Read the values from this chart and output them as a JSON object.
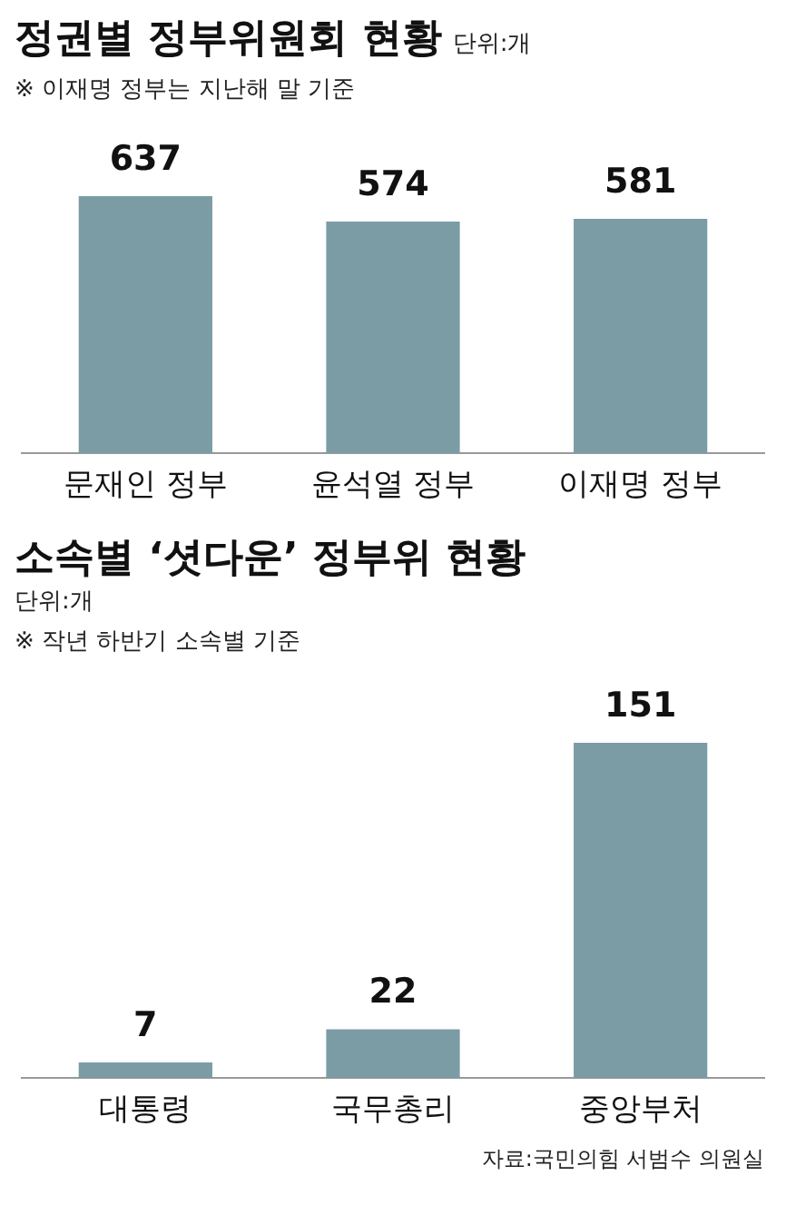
{
  "chart_data": [
    {
      "type": "bar",
      "title": "정권별 정부위원회 현황",
      "subtitle": "단위:개",
      "annotations": [
        "※ 이재명 정부는 지난해 말 기준"
      ],
      "categories": [
        "문재인 정부",
        "윤석열 정부",
        "이재명 정부"
      ],
      "values": [
        637,
        574,
        581
      ],
      "color": "#7b9ca5",
      "data_labels": true,
      "grid": false,
      "tick_labels": "x",
      "legend": false
    },
    {
      "type": "bar",
      "title": "소속별 ‘셧다운’ 정부위 현황",
      "subtitle": "단위:개",
      "annotations": [
        "※ 작년 하반기 소속별 기준",
        "자료:국민의힘 서범수 의원실"
      ],
      "categories": [
        "대통령",
        "국무총리",
        "중앙부처"
      ],
      "values": [
        7,
        22,
        151
      ],
      "color": "#7b9ca5",
      "data_labels": true,
      "grid": false,
      "tick_labels": "x",
      "legend": false
    }
  ]
}
